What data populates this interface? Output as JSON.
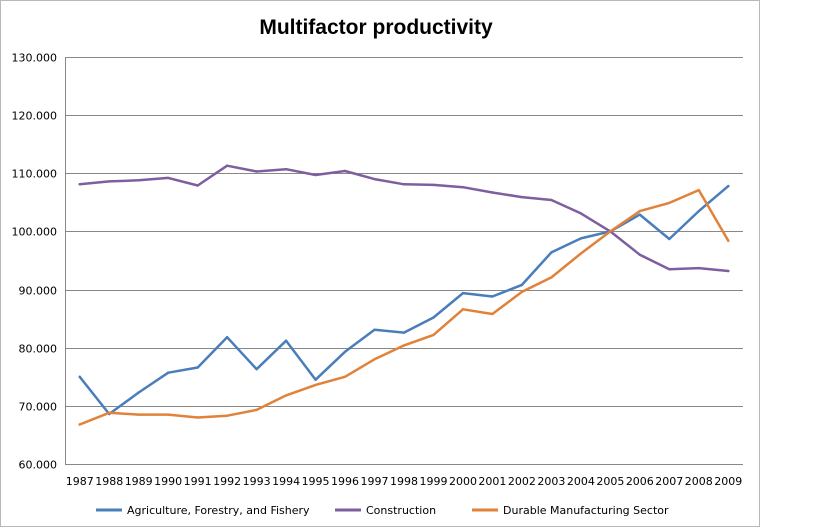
{
  "chart_data": {
    "type": "line",
    "title": "Multifactor productivity",
    "xlabel": "",
    "ylabel": "",
    "ylim": [
      60,
      130
    ],
    "y_ticks": [
      "60.000",
      "70.000",
      "80.000",
      "90.000",
      "100.000",
      "110.000",
      "120.000",
      "130.000"
    ],
    "grid": true,
    "legend_position": "bottom",
    "categories": [
      "1987",
      "1988",
      "1989",
      "1990",
      "1991",
      "1992",
      "1993",
      "1994",
      "1995",
      "1996",
      "1997",
      "1998",
      "1999",
      "2000",
      "2001",
      "2002",
      "2003",
      "2004",
      "2005",
      "2006",
      "2007",
      "2008",
      "2009"
    ],
    "series": [
      {
        "name": "Agriculture, Forestry, and Fishery",
        "color": "#4a7ebb",
        "values": [
          75.0,
          68.6,
          72.3,
          75.7,
          76.6,
          81.8,
          76.3,
          81.2,
          74.5,
          79.3,
          83.1,
          82.6,
          85.2,
          89.4,
          88.8,
          90.8,
          96.4,
          98.8,
          100.0,
          102.9,
          98.7,
          103.5,
          107.8
        ]
      },
      {
        "name": "Construction",
        "color": "#7d5fa0",
        "values": [
          108.1,
          108.6,
          108.8,
          109.2,
          107.9,
          111.3,
          110.3,
          110.7,
          109.7,
          110.4,
          109.0,
          108.1,
          108.0,
          107.6,
          106.7,
          105.9,
          105.4,
          103.1,
          100.0,
          96.0,
          93.5,
          93.7,
          93.2
        ]
      },
      {
        "name": "Durable Manufacturing Sector",
        "color": "#e0823a",
        "values": [
          66.8,
          68.8,
          68.5,
          68.5,
          68.0,
          68.3,
          69.3,
          71.8,
          73.6,
          75.0,
          78.0,
          80.4,
          82.2,
          86.6,
          85.8,
          89.6,
          92.1,
          96.2,
          100.0,
          103.5,
          104.9,
          107.1,
          98.4
        ]
      }
    ]
  }
}
